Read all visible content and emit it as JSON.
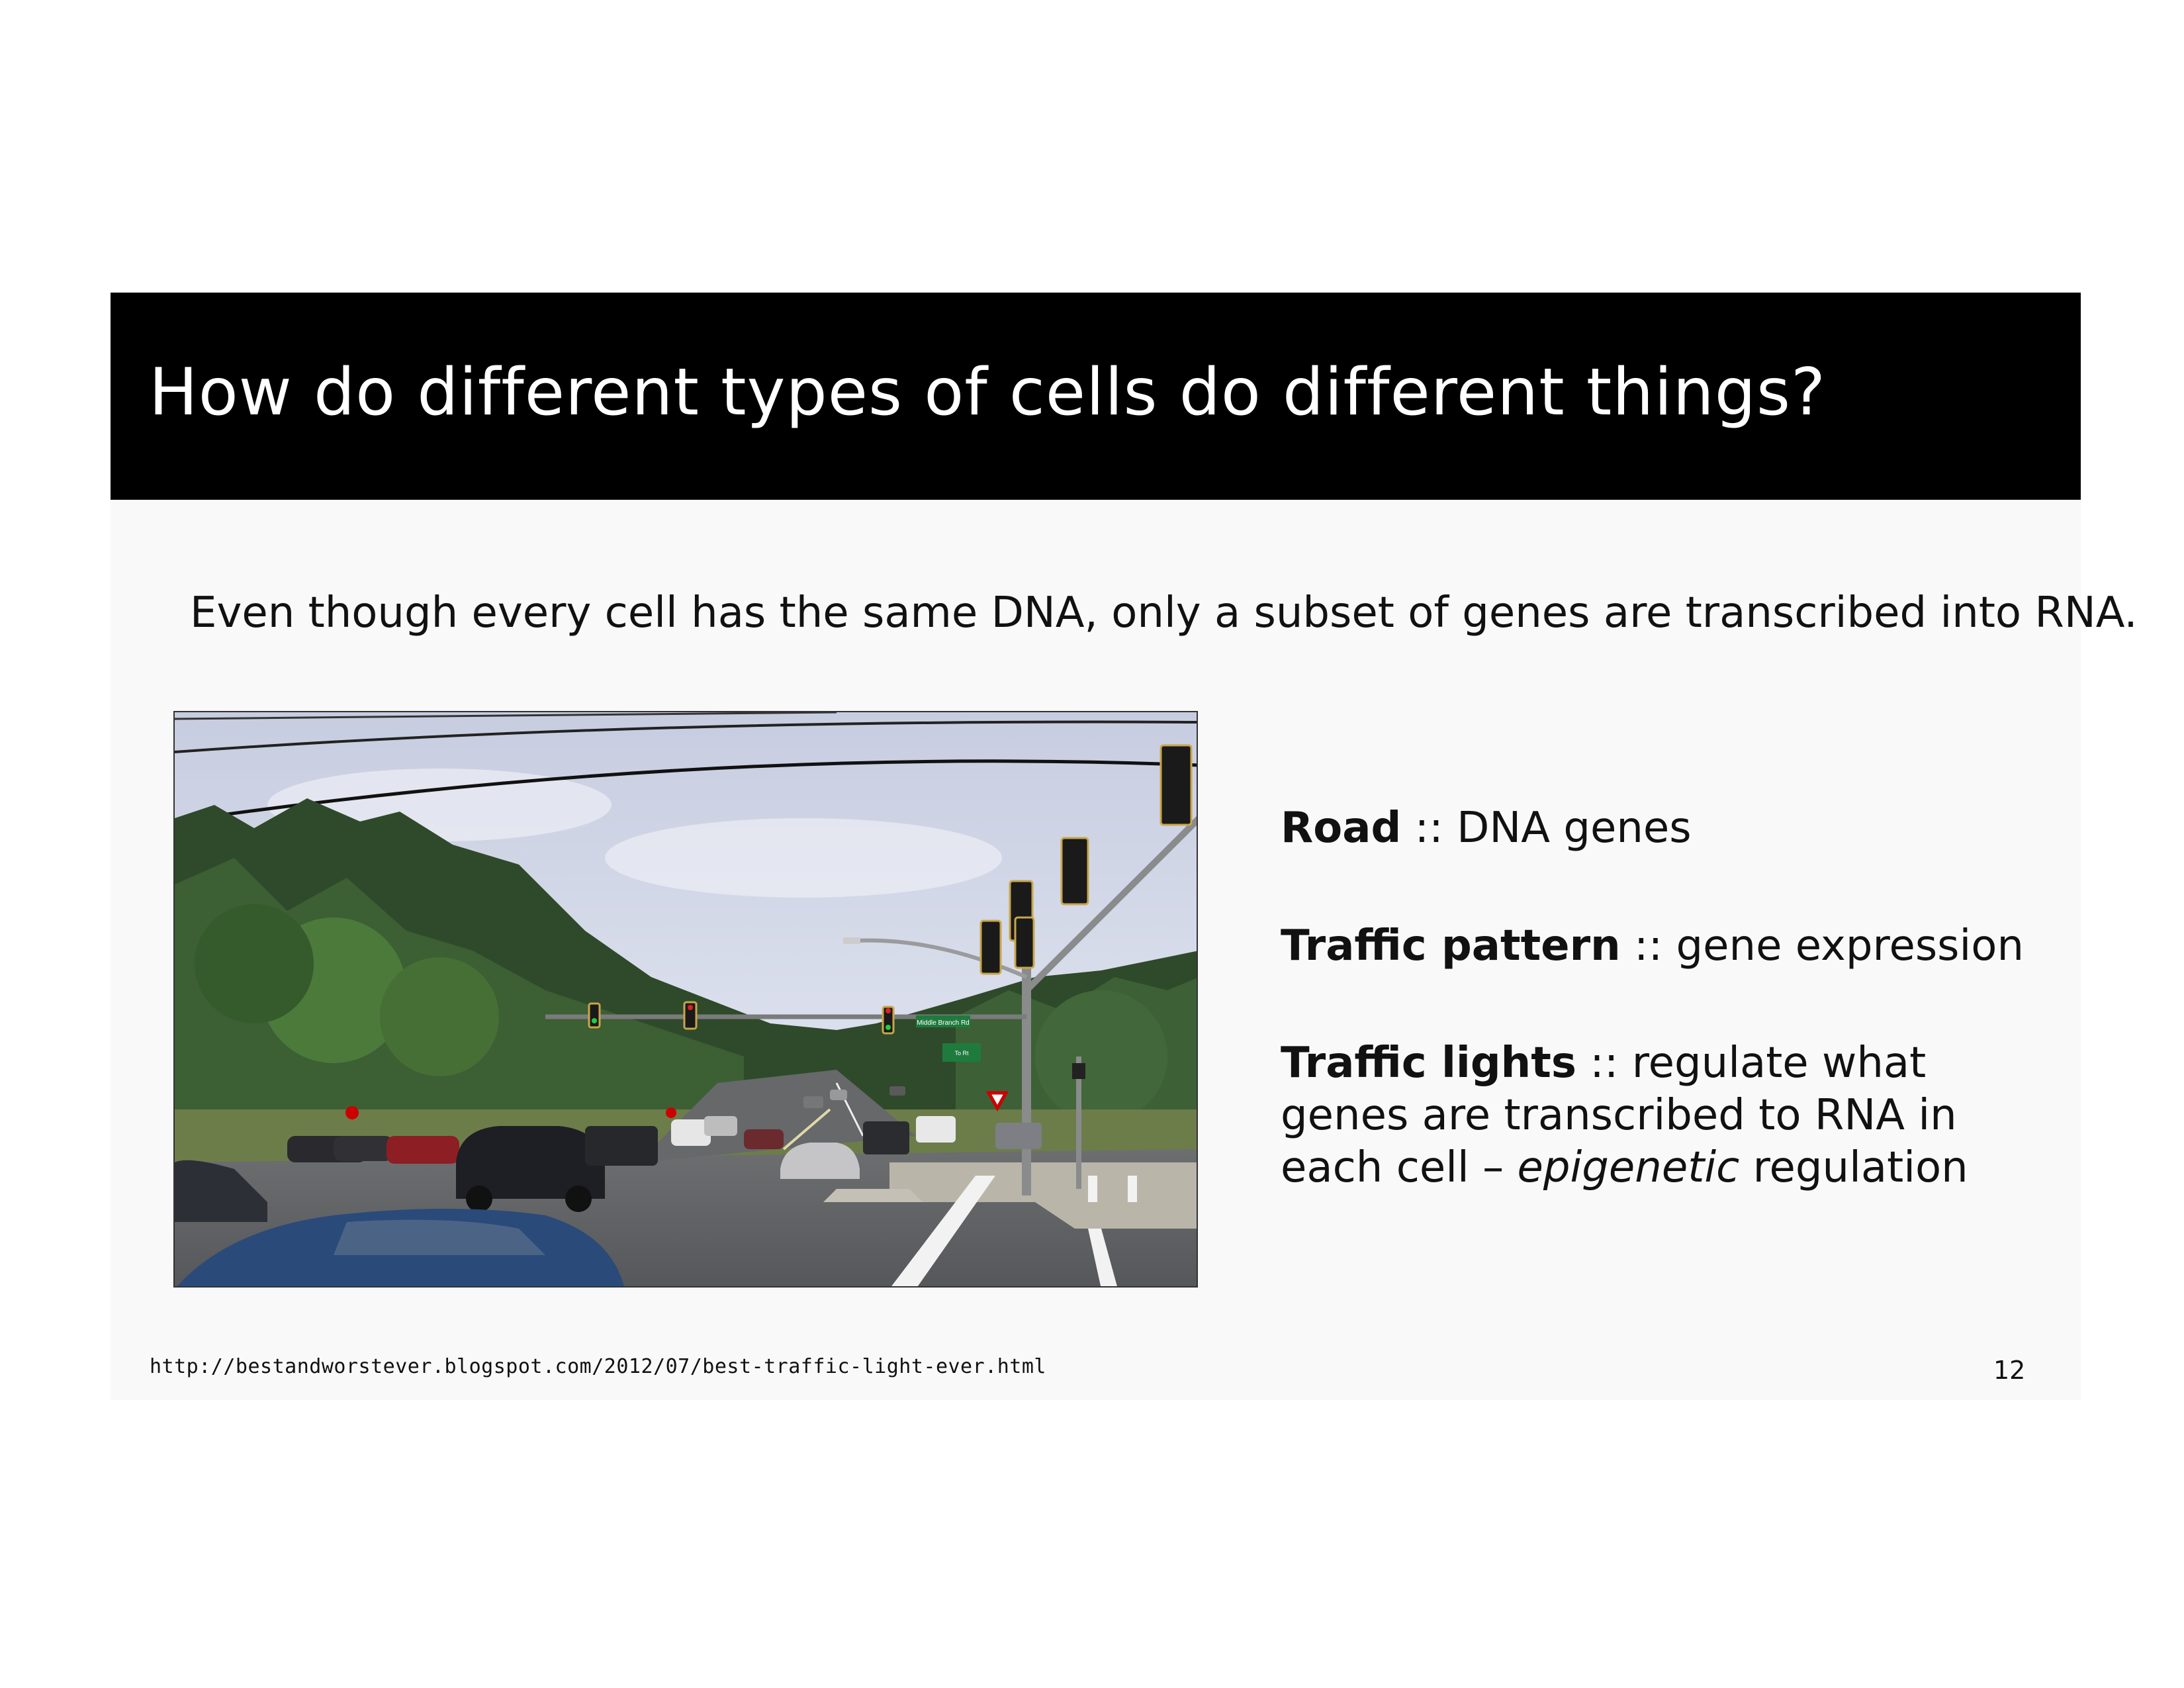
{
  "slide": {
    "title": "How do different types of cells do different things?",
    "subtitle": "Even though every cell has the same DNA, only a subset of genes are transcribed into RNA.",
    "photo": {
      "sign_main": "Middle Branch Rd",
      "sign_secondary": "To Rt"
    },
    "analogies": [
      {
        "term": "Road",
        "sep": " :: ",
        "desc": "DNA genes"
      },
      {
        "term": "Traffic pattern",
        "sep": " :: ",
        "desc": "gene expression"
      },
      {
        "term": "Traffic lights",
        "sep": " :: ",
        "desc": "regulate what genes are transcribed to RNA in each cell – ",
        "desc_em": "epigenetic",
        "desc_tail": " regulation"
      }
    ],
    "source_url": "http://bestandworstever.blogspot.com/2012/07/best-traffic-light-ever.html",
    "page_number": "12"
  },
  "colors": {
    "title_bg": "#000000",
    "title_fg": "#ffffff",
    "slide_bg": "#f9f9f9",
    "text": "#111111"
  }
}
